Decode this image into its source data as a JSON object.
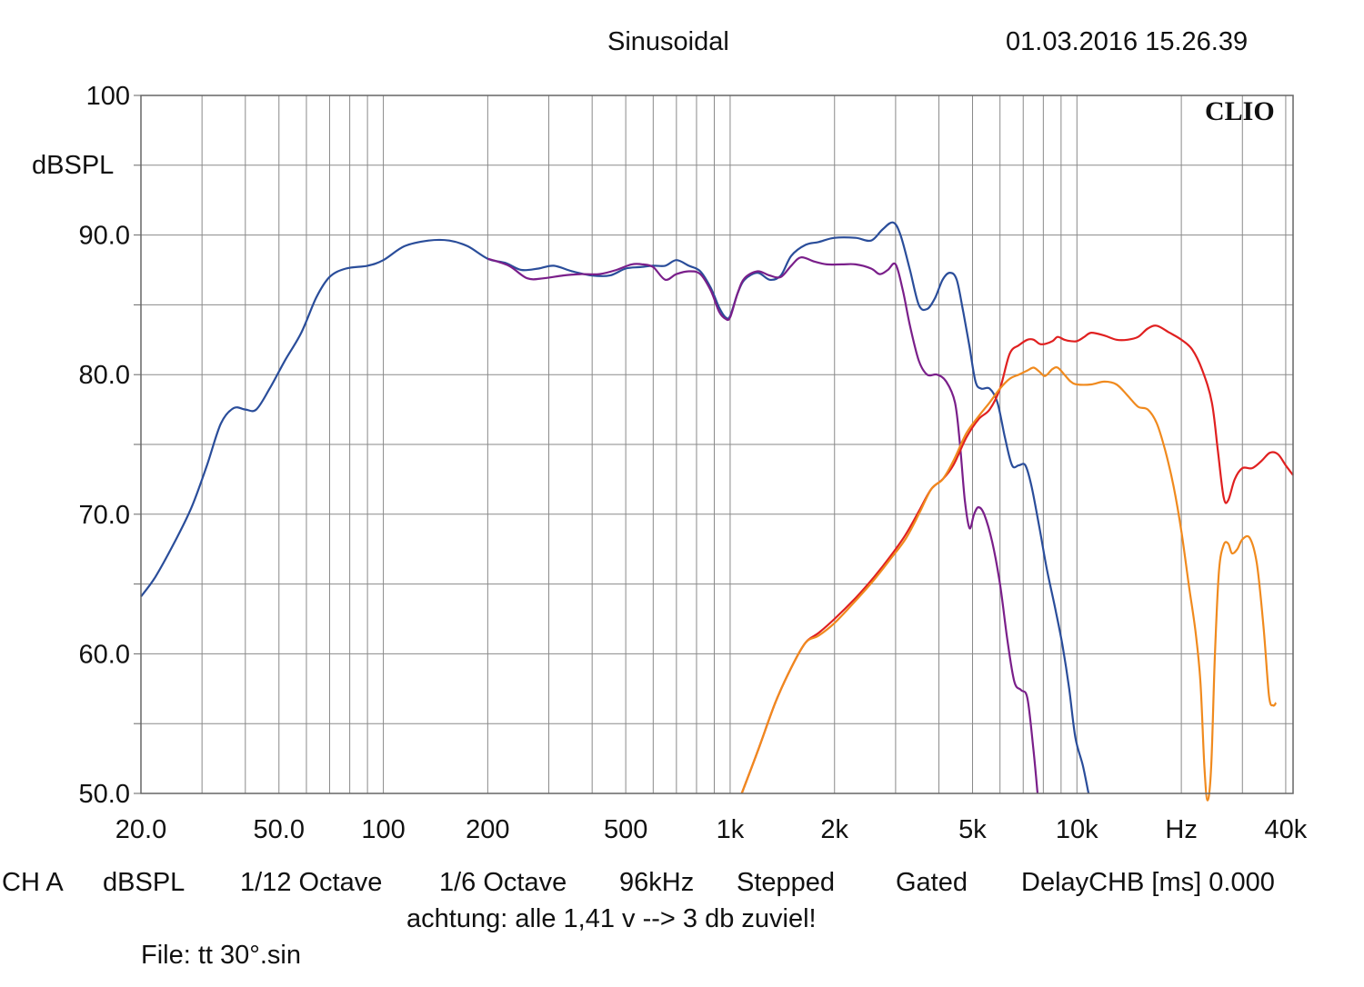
{
  "header": {
    "title": "Sinusoidal",
    "datetime": "01.03.2016 15.26.39"
  },
  "brand": "CLIO",
  "footer": {
    "line1": [
      "CH A",
      "dBSPL",
      "1/12 Octave",
      "1/6 Octave",
      "96kHz",
      "Stepped",
      "Gated",
      "DelayCHB [ms] 0.000"
    ],
    "note": "achtung: alle 1,41 v --> 3 db zuviel!",
    "file": "File: tt 30°.sin"
  },
  "chart_data": {
    "type": "line",
    "title": "Sinusoidal",
    "xscale": "log",
    "xlim": [
      20,
      42000
    ],
    "ylim": [
      50,
      100
    ],
    "ylabel": "dBSPL",
    "xlabel": "Hz",
    "grid": true,
    "x_tick_labels": [
      {
        "x": 20,
        "label": "20.0"
      },
      {
        "x": 50,
        "label": "50.0"
      },
      {
        "x": 100,
        "label": "100"
      },
      {
        "x": 200,
        "label": "200"
      },
      {
        "x": 500,
        "label": "500"
      },
      {
        "x": 1000,
        "label": "1k"
      },
      {
        "x": 2000,
        "label": "2k"
      },
      {
        "x": 5000,
        "label": "5k"
      },
      {
        "x": 10000,
        "label": "10k"
      },
      {
        "x": 20000,
        "label": "Hz"
      },
      {
        "x": 40000,
        "label": "40k"
      }
    ],
    "y_tick_labels": [
      {
        "y": 100,
        "label": "100"
      },
      {
        "y": 90,
        "label": "90.0"
      },
      {
        "y": 80,
        "label": "80.0"
      },
      {
        "y": 70,
        "label": "70.0"
      },
      {
        "y": 60,
        "label": "60.0"
      },
      {
        "y": 50,
        "label": "50.0"
      }
    ],
    "series": [
      {
        "color": "#2a4d9a",
        "points": [
          [
            20,
            64.1
          ],
          [
            22,
            65.5
          ],
          [
            25,
            68
          ],
          [
            28,
            70.5
          ],
          [
            31,
            73.5
          ],
          [
            34,
            76.5
          ],
          [
            37,
            77.6
          ],
          [
            40,
            77.5
          ],
          [
            43,
            77.5
          ],
          [
            47,
            79
          ],
          [
            52,
            81
          ],
          [
            58,
            83
          ],
          [
            64,
            85.5
          ],
          [
            70,
            87
          ],
          [
            78,
            87.6
          ],
          [
            90,
            87.8
          ],
          [
            100,
            88.2
          ],
          [
            115,
            89.2
          ],
          [
            135,
            89.6
          ],
          [
            155,
            89.6
          ],
          [
            175,
            89.2
          ],
          [
            200,
            88.3
          ],
          [
            225,
            88
          ],
          [
            250,
            87.5
          ],
          [
            280,
            87.6
          ],
          [
            310,
            87.8
          ],
          [
            350,
            87.4
          ],
          [
            400,
            87.1
          ],
          [
            450,
            87.1
          ],
          [
            500,
            87.6
          ],
          [
            550,
            87.7
          ],
          [
            600,
            87.8
          ],
          [
            650,
            87.8
          ],
          [
            700,
            88.2
          ],
          [
            760,
            87.8
          ],
          [
            820,
            87.4
          ],
          [
            880,
            86.2
          ],
          [
            930,
            84.8
          ],
          [
            970,
            84.1
          ],
          [
            1000,
            84.2
          ],
          [
            1050,
            85.8
          ],
          [
            1100,
            86.8
          ],
          [
            1200,
            87.3
          ],
          [
            1300,
            86.8
          ],
          [
            1400,
            87.1
          ],
          [
            1500,
            88.5
          ],
          [
            1650,
            89.3
          ],
          [
            1800,
            89.5
          ],
          [
            2000,
            89.8
          ],
          [
            2300,
            89.8
          ],
          [
            2550,
            89.6
          ],
          [
            2750,
            90.4
          ],
          [
            2950,
            90.9
          ],
          [
            3100,
            90
          ],
          [
            3300,
            87.5
          ],
          [
            3500,
            85
          ],
          [
            3700,
            84.7
          ],
          [
            3900,
            85.5
          ],
          [
            4100,
            86.8
          ],
          [
            4300,
            87.3
          ],
          [
            4500,
            86.8
          ],
          [
            4700,
            84.5
          ],
          [
            4900,
            82
          ],
          [
            5100,
            79.5
          ],
          [
            5300,
            79
          ],
          [
            5600,
            79
          ],
          [
            5900,
            78
          ],
          [
            6200,
            75.5
          ],
          [
            6500,
            73.5
          ],
          [
            6800,
            73.5
          ],
          [
            7100,
            73.5
          ],
          [
            7400,
            72
          ],
          [
            7800,
            69
          ],
          [
            8200,
            66
          ],
          [
            8700,
            63
          ],
          [
            9100,
            60.5
          ],
          [
            9500,
            57.5
          ],
          [
            9900,
            54
          ],
          [
            10400,
            52
          ],
          [
            10800,
            50
          ]
        ]
      },
      {
        "color": "#7a1f8a",
        "points": [
          [
            200,
            88.3
          ],
          [
            230,
            87.8
          ],
          [
            260,
            86.9
          ],
          [
            290,
            86.9
          ],
          [
            330,
            87.1
          ],
          [
            370,
            87.2
          ],
          [
            420,
            87.2
          ],
          [
            470,
            87.5
          ],
          [
            520,
            87.9
          ],
          [
            560,
            87.9
          ],
          [
            600,
            87.7
          ],
          [
            650,
            86.8
          ],
          [
            700,
            87.2
          ],
          [
            760,
            87.4
          ],
          [
            820,
            87.2
          ],
          [
            880,
            86
          ],
          [
            930,
            84.5
          ],
          [
            970,
            84
          ],
          [
            1000,
            84.1
          ],
          [
            1050,
            85.8
          ],
          [
            1100,
            86.9
          ],
          [
            1200,
            87.4
          ],
          [
            1300,
            87.1
          ],
          [
            1400,
            87
          ],
          [
            1500,
            87.8
          ],
          [
            1600,
            88.4
          ],
          [
            1750,
            88.1
          ],
          [
            1900,
            87.9
          ],
          [
            2100,
            87.9
          ],
          [
            2300,
            87.9
          ],
          [
            2550,
            87.6
          ],
          [
            2700,
            87.2
          ],
          [
            2850,
            87.5
          ],
          [
            3000,
            87.9
          ],
          [
            3150,
            86
          ],
          [
            3300,
            83.5
          ],
          [
            3500,
            81
          ],
          [
            3700,
            80
          ],
          [
            3950,
            80
          ],
          [
            4200,
            79.5
          ],
          [
            4450,
            78
          ],
          [
            4600,
            75
          ],
          [
            4750,
            71
          ],
          [
            4900,
            69
          ],
          [
            5050,
            70
          ],
          [
            5200,
            70.5
          ],
          [
            5400,
            70
          ],
          [
            5700,
            68
          ],
          [
            6000,
            65
          ],
          [
            6300,
            61
          ],
          [
            6600,
            58
          ],
          [
            6900,
            57.4
          ],
          [
            7200,
            56.8
          ],
          [
            7500,
            53
          ],
          [
            7700,
            50
          ]
        ]
      },
      {
        "color": "#e02020",
        "points": [
          [
            1080,
            50
          ],
          [
            1200,
            53
          ],
          [
            1350,
            56.5
          ],
          [
            1500,
            59
          ],
          [
            1650,
            60.8
          ],
          [
            1800,
            61.5
          ],
          [
            2000,
            62.5
          ],
          [
            2300,
            64
          ],
          [
            2600,
            65.5
          ],
          [
            2900,
            67
          ],
          [
            3200,
            68.5
          ],
          [
            3500,
            70.2
          ],
          [
            3800,
            71.8
          ],
          [
            4100,
            72.5
          ],
          [
            4400,
            73.5
          ],
          [
            4800,
            75.5
          ],
          [
            5200,
            76.8
          ],
          [
            5600,
            77.5
          ],
          [
            6000,
            79
          ],
          [
            6400,
            81.5
          ],
          [
            6800,
            82.1
          ],
          [
            7200,
            82.5
          ],
          [
            7500,
            82.5
          ],
          [
            7800,
            82.2
          ],
          [
            8100,
            82.2
          ],
          [
            8500,
            82.4
          ],
          [
            8800,
            82.7
          ],
          [
            9200,
            82.5
          ],
          [
            9600,
            82.4
          ],
          [
            10000,
            82.4
          ],
          [
            10500,
            82.7
          ],
          [
            11000,
            83
          ],
          [
            12000,
            82.8
          ],
          [
            13000,
            82.5
          ],
          [
            14000,
            82.5
          ],
          [
            15000,
            82.7
          ],
          [
            16000,
            83.3
          ],
          [
            17000,
            83.5
          ],
          [
            18500,
            83
          ],
          [
            20000,
            82.5
          ],
          [
            21500,
            81.8
          ],
          [
            23000,
            80.3
          ],
          [
            24500,
            78
          ],
          [
            25500,
            74.5
          ],
          [
            26500,
            71.2
          ],
          [
            27300,
            71
          ],
          [
            28500,
            72.5
          ],
          [
            30000,
            73.3
          ],
          [
            32000,
            73.3
          ],
          [
            34000,
            73.8
          ],
          [
            36000,
            74.4
          ],
          [
            38000,
            74.3
          ],
          [
            40000,
            73.5
          ],
          [
            42000,
            72.8
          ]
        ]
      },
      {
        "color": "#f08a1e",
        "points": [
          [
            1080,
            50
          ],
          [
            1200,
            53
          ],
          [
            1350,
            56.5
          ],
          [
            1500,
            59
          ],
          [
            1650,
            60.8
          ],
          [
            1800,
            61.3
          ],
          [
            2000,
            62.2
          ],
          [
            2300,
            63.8
          ],
          [
            2600,
            65.3
          ],
          [
            2900,
            66.8
          ],
          [
            3200,
            68.2
          ],
          [
            3500,
            70
          ],
          [
            3800,
            71.8
          ],
          [
            4100,
            72.5
          ],
          [
            4400,
            73.8
          ],
          [
            4800,
            75.8
          ],
          [
            5200,
            77
          ],
          [
            5600,
            78
          ],
          [
            6000,
            79
          ],
          [
            6400,
            79.7
          ],
          [
            6800,
            80
          ],
          [
            7200,
            80.3
          ],
          [
            7500,
            80.5
          ],
          [
            7800,
            80.2
          ],
          [
            8100,
            79.9
          ],
          [
            8500,
            80.4
          ],
          [
            8800,
            80.5
          ],
          [
            9200,
            80
          ],
          [
            9600,
            79.5
          ],
          [
            10000,
            79.3
          ],
          [
            11000,
            79.3
          ],
          [
            12000,
            79.5
          ],
          [
            13000,
            79.3
          ],
          [
            14000,
            78.5
          ],
          [
            15000,
            77.7
          ],
          [
            16000,
            77.5
          ],
          [
            17000,
            76.5
          ],
          [
            18000,
            74.5
          ],
          [
            19000,
            72
          ],
          [
            20000,
            68.8
          ],
          [
            21000,
            65
          ],
          [
            22000,
            61.5
          ],
          [
            22700,
            58
          ],
          [
            23300,
            52
          ],
          [
            23800,
            49.5
          ],
          [
            24400,
            52
          ],
          [
            25000,
            60
          ],
          [
            25700,
            66
          ],
          [
            26500,
            67.8
          ],
          [
            27300,
            67.9
          ],
          [
            28000,
            67.2
          ],
          [
            29000,
            67.5
          ],
          [
            30000,
            68.2
          ],
          [
            31500,
            68.3
          ],
          [
            33000,
            66.5
          ],
          [
            34500,
            62
          ],
          [
            35800,
            57
          ],
          [
            36800,
            56.3
          ],
          [
            37500,
            56.5
          ]
        ]
      }
    ]
  }
}
